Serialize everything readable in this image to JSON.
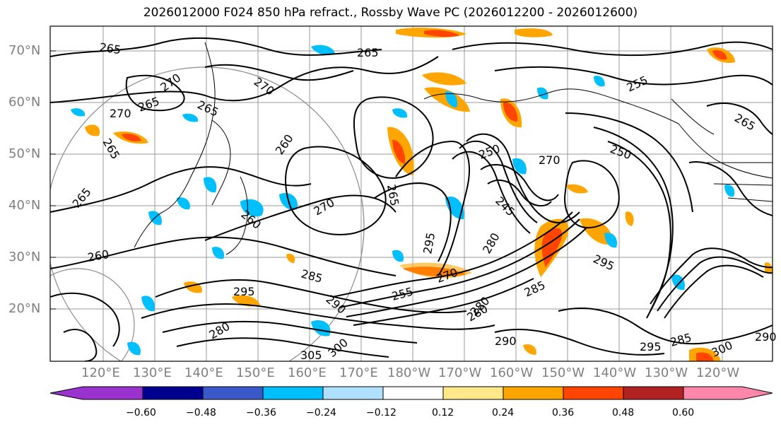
{
  "title": "2026012000 F024 850 hPa refract., Rossby Wave PC (2026012200 - 2026012600)",
  "lat_labels": [
    "70°N",
    "60°N",
    "50°N",
    "40°N",
    "30°N",
    "20°N"
  ],
  "lon_labels": [
    "120°E",
    "130°E",
    "140°E",
    "150°E",
    "160°E",
    "170°E",
    "180°W",
    "170°W",
    "160°W",
    "150°W",
    "140°W",
    "130°W",
    "120°W"
  ],
  "contour_labels": [
    "265",
    "270",
    "265",
    "265",
    "270",
    "265",
    "265",
    "260",
    "270",
    "265",
    "255",
    "265",
    "250",
    "270",
    "250",
    "245",
    "260",
    "265",
    "270",
    "280",
    "295",
    "285",
    "290",
    "295",
    "255",
    "260",
    "270",
    "280",
    "295",
    "285",
    "280",
    "305",
    "300",
    "280",
    "290",
    "295",
    "300",
    "285",
    "290"
  ],
  "colorbar": {
    "ticks": [
      "−0.60",
      "−0.48",
      "−0.36",
      "−0.24",
      "−0.12",
      "0.12",
      "0.24",
      "0.36",
      "0.48",
      "0.60"
    ],
    "colors": [
      "#9a32cd",
      "#000090",
      "#3a58c8",
      "#00bfff",
      "#b0e0ff",
      "#ffffff",
      "#ffe88a",
      "#ffa500",
      "#ff4500",
      "#b22222",
      "#ff88aa"
    ]
  }
}
